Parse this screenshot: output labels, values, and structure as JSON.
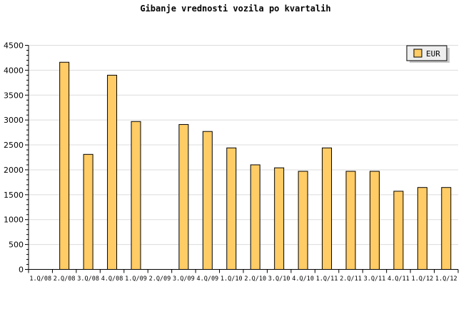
{
  "chart_data": {
    "type": "bar",
    "title": "Gibanje vrednosti vozila po kvartalih",
    "xlabel": "",
    "ylabel": "",
    "ylim": [
      0,
      4500
    ],
    "yticks": [
      0,
      500,
      1000,
      1500,
      2000,
      2500,
      3000,
      3500,
      4000,
      4500
    ],
    "grid": true,
    "legend_position": "top-right",
    "categories": [
      "1.Q/08",
      "2.Q/08",
      "3.Q/08",
      "4.Q/08",
      "1.Q/09",
      "2.Q/09",
      "3.Q/09",
      "4.Q/09",
      "1.Q/10",
      "2.Q/10",
      "3.Q/10",
      "4.Q/10",
      "1.Q/11",
      "2.Q/11",
      "3.Q/11",
      "4.Q/11",
      "1.Q/12",
      "1.Q/12"
    ],
    "series": [
      {
        "name": "EUR",
        "color": "#ffcc66",
        "values": [
          0,
          4160,
          2310,
          3900,
          2970,
          0,
          2910,
          2770,
          2440,
          2100,
          2040,
          1970,
          2440,
          1970,
          1970,
          1570,
          1645,
          1645
        ]
      }
    ]
  }
}
